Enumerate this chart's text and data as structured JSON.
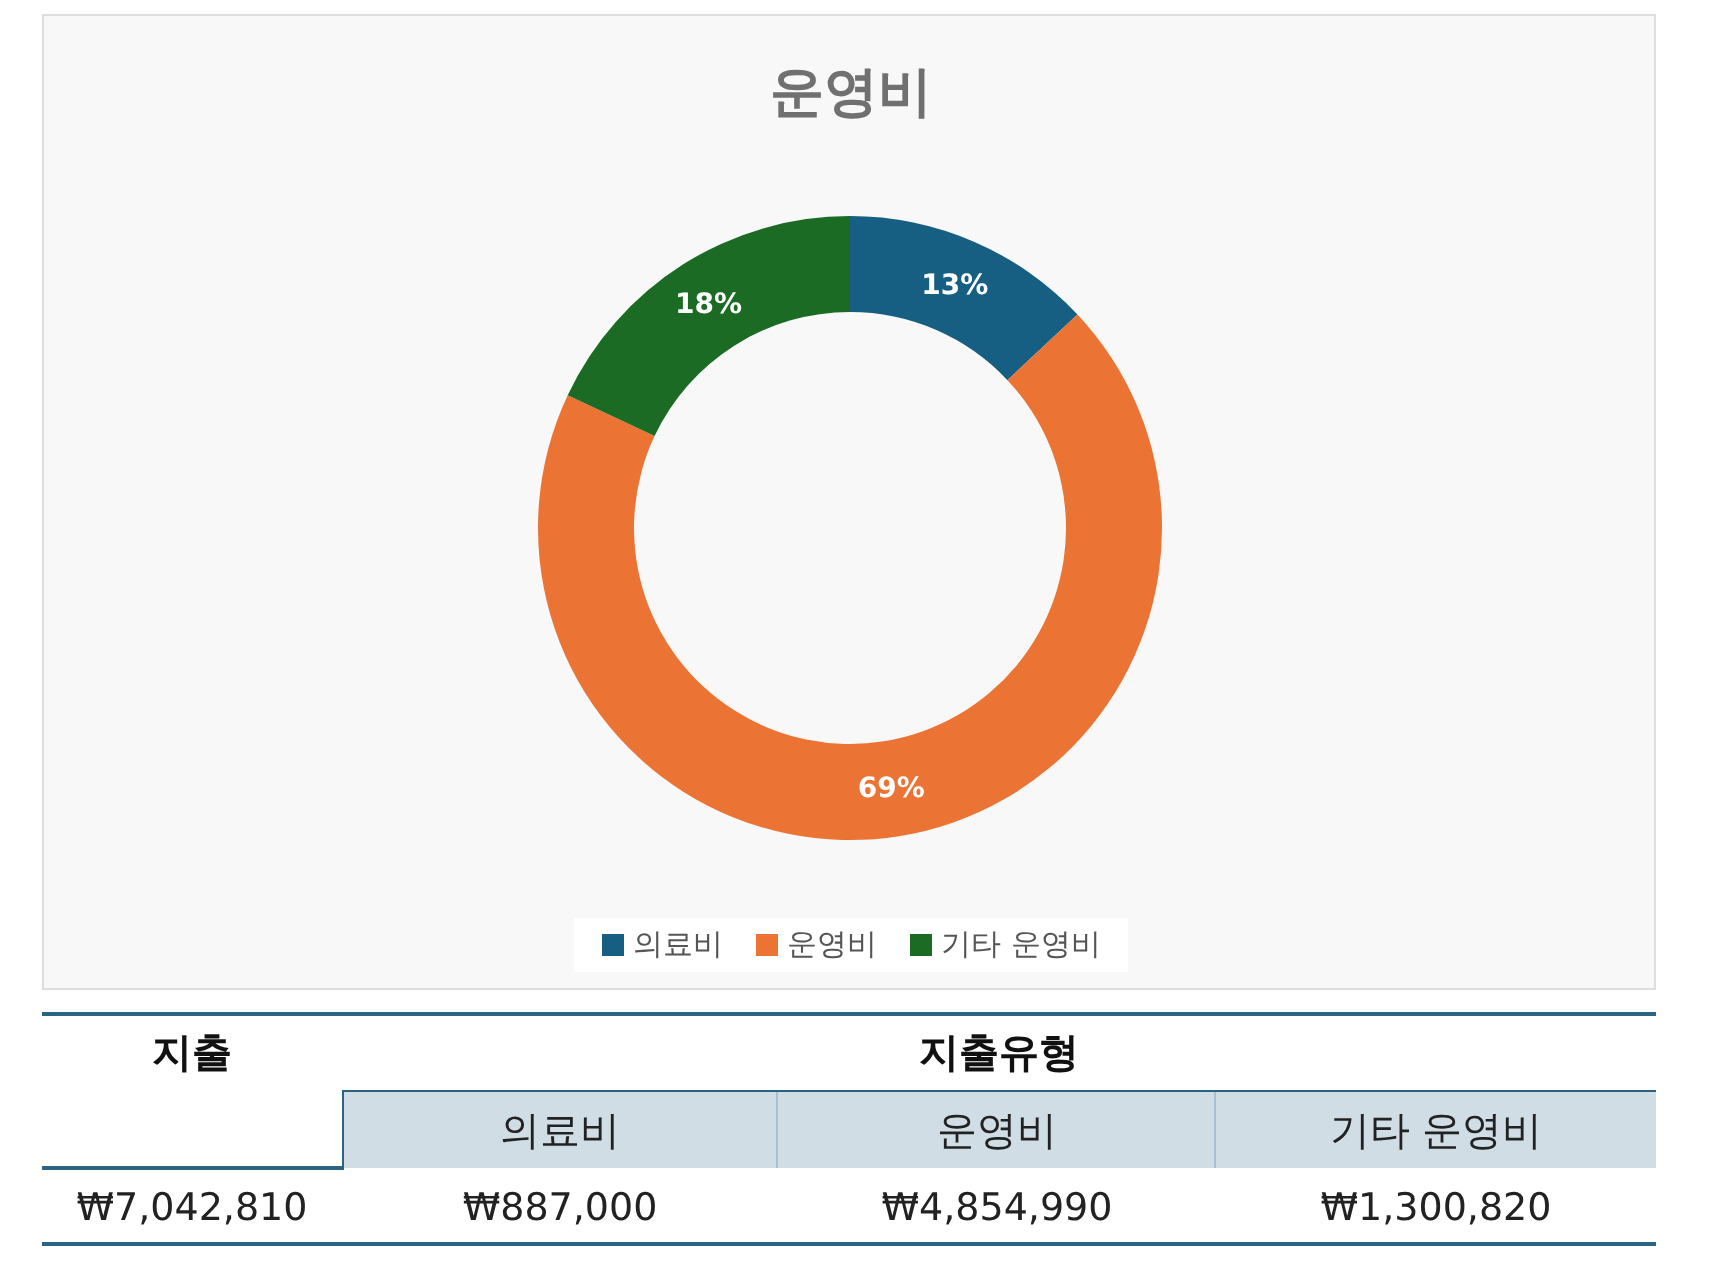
{
  "chart_data": {
    "type": "donut",
    "title": "운영비",
    "categories": [
      "의료비",
      "운영비",
      "기타 운영비"
    ],
    "values": [
      13,
      69,
      18
    ],
    "value_labels": [
      "13%",
      "69%",
      "18%"
    ],
    "colors": [
      "#175f82",
      "#eb7333",
      "#1b6b24"
    ],
    "legend": "bottom",
    "annotations": [
      "지출",
      "지출유형",
      "₩7,042,810",
      "₩887,000",
      "₩4,854,990",
      "₩1,300,820"
    ]
  }
}
